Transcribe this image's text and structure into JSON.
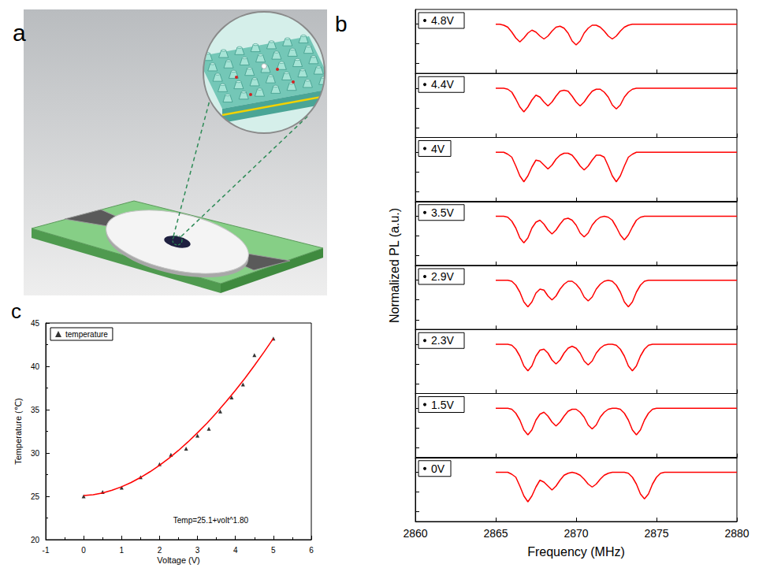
{
  "illustration": {
    "panel": "a"
  },
  "chart_data": [
    {
      "type": "line",
      "panel": "b",
      "x_label": "Frequency (MHz)",
      "y_label": "Normalized PL (a.u.)",
      "xlim": [
        2860,
        2880
      ],
      "xticks": [
        2860,
        2865,
        2870,
        2875,
        2880
      ],
      "ylim": [
        0.95,
        1.015
      ],
      "yticks": [
        0.96,
        0.98,
        1
      ],
      "tick_labels": "x",
      "grid": false,
      "x": [
        2865,
        2865.25,
        2865.5,
        2865.75,
        2866,
        2866.25,
        2866.5,
        2866.75,
        2867,
        2867.25,
        2867.5,
        2867.75,
        2868,
        2868.25,
        2868.5,
        2868.75,
        2869,
        2869.25,
        2869.5,
        2869.75,
        2870,
        2870.25,
        2870.5,
        2870.75,
        2871,
        2871.25,
        2871.5,
        2871.75,
        2872,
        2872.25,
        2872.5,
        2872.75,
        2873,
        2873.25,
        2873.5,
        2873.75,
        2874,
        2874.25,
        2874.5,
        2874.75,
        2875,
        2875.25,
        2875.5,
        2875.75,
        2876,
        2877,
        2878,
        2879,
        2880
      ],
      "series": [
        {
          "name": "0V",
          "color": "#ff0000",
          "values": [
            1,
            1,
            1,
            1,
            0.998,
            0.995,
            0.986,
            0.976,
            0.97,
            0.976,
            0.985,
            0.992,
            0.99,
            0.986,
            0.982,
            0.986,
            0.992,
            0.997,
            0.999,
            1,
            0.999,
            0.997,
            0.993,
            0.988,
            0.985,
            0.988,
            0.993,
            0.997,
            0.999,
            1,
            1,
            1,
            1,
            0.999,
            0.995,
            0.988,
            0.978,
            0.973,
            0.978,
            0.988,
            0.995,
            0.999,
            1,
            1,
            1,
            1,
            1,
            1,
            1
          ]
        },
        {
          "name": "1.5V",
          "color": "#ff0000",
          "values": [
            1,
            1,
            1,
            1,
            0.999,
            0.995,
            0.988,
            0.978,
            0.973,
            0.978,
            0.988,
            0.994,
            0.996,
            0.992,
            0.986,
            0.982,
            0.986,
            0.992,
            0.997,
            0.999,
            0.999,
            0.996,
            0.991,
            0.983,
            0.979,
            0.983,
            0.991,
            0.996,
            0.999,
            1,
            1,
            0.999,
            0.995,
            0.988,
            0.978,
            0.973,
            0.978,
            0.988,
            0.995,
            0.999,
            1,
            1,
            1,
            1,
            1,
            1,
            1,
            1,
            1
          ]
        },
        {
          "name": "2.3V",
          "color": "#ff0000",
          "values": [
            1,
            1,
            1,
            1,
            0.999,
            0.995,
            0.988,
            0.978,
            0.973,
            0.978,
            0.988,
            0.994,
            0.995,
            0.991,
            0.984,
            0.98,
            0.984,
            0.991,
            0.996,
            0.998,
            0.996,
            0.991,
            0.983,
            0.979,
            0.983,
            0.991,
            0.996,
            0.999,
            1,
            1,
            0.999,
            0.995,
            0.988,
            0.978,
            0.973,
            0.978,
            0.988,
            0.995,
            0.999,
            1,
            1,
            1,
            1,
            1,
            1,
            1,
            1,
            1,
            1
          ]
        },
        {
          "name": "2.9V",
          "color": "#ff0000",
          "values": [
            1,
            1,
            1,
            1,
            0.999,
            0.995,
            0.988,
            0.978,
            0.973,
            0.978,
            0.987,
            0.991,
            0.99,
            0.984,
            0.98,
            0.984,
            0.991,
            0.996,
            0.999,
            0.999,
            0.996,
            0.991,
            0.983,
            0.979,
            0.983,
            0.991,
            0.996,
            0.999,
            1,
            0.999,
            0.995,
            0.988,
            0.978,
            0.973,
            0.978,
            0.988,
            0.995,
            0.999,
            1,
            1,
            1,
            1,
            1,
            1,
            1,
            1,
            1,
            1,
            1
          ]
        },
        {
          "name": "3.5V",
          "color": "#ff0000",
          "values": [
            1,
            1,
            1,
            0.999,
            0.995,
            0.988,
            0.978,
            0.973,
            0.978,
            0.988,
            0.994,
            0.996,
            0.992,
            0.986,
            0.982,
            0.986,
            0.992,
            0.997,
            0.998,
            0.996,
            0.991,
            0.983,
            0.979,
            0.983,
            0.991,
            0.996,
            0.999,
            1,
            0.999,
            0.996,
            0.989,
            0.981,
            0.976,
            0.981,
            0.989,
            0.996,
            0.999,
            1,
            1,
            1,
            1,
            1,
            1,
            1,
            1,
            1,
            1,
            1,
            1
          ]
        },
        {
          "name": "4V",
          "color": "#ff0000",
          "values": [
            1,
            1,
            1,
            0.998,
            0.995,
            0.986,
            0.976,
            0.97,
            0.976,
            0.985,
            0.992,
            0.991,
            0.987,
            0.983,
            0.987,
            0.993,
            0.997,
            0.999,
            0.999,
            0.997,
            0.992,
            0.986,
            0.982,
            0.986,
            0.992,
            0.997,
            0.997,
            0.995,
            0.986,
            0.976,
            0.97,
            0.976,
            0.986,
            0.995,
            0.998,
            1,
            1,
            1,
            1,
            1,
            1,
            1,
            1,
            1,
            1,
            1,
            1,
            1,
            1
          ]
        },
        {
          "name": "4.4V",
          "color": "#ff0000",
          "values": [
            1,
            1,
            1,
            0.999,
            0.996,
            0.989,
            0.981,
            0.976,
            0.981,
            0.988,
            0.993,
            0.991,
            0.986,
            0.982,
            0.986,
            0.992,
            0.997,
            0.998,
            0.997,
            0.992,
            0.986,
            0.982,
            0.986,
            0.992,
            0.997,
            0.999,
            0.999,
            0.996,
            0.991,
            0.983,
            0.979,
            0.983,
            0.991,
            0.996,
            0.999,
            1,
            1,
            1,
            1,
            1,
            1,
            1,
            1,
            1,
            1,
            1,
            1,
            1,
            1
          ]
        },
        {
          "name": "4.8V",
          "color": "#ff0000",
          "values": [
            1,
            1,
            0.999,
            0.997,
            0.992,
            0.986,
            0.982,
            0.986,
            0.991,
            0.994,
            0.992,
            0.988,
            0.985,
            0.988,
            0.993,
            0.997,
            0.998,
            0.996,
            0.991,
            0.983,
            0.979,
            0.983,
            0.991,
            0.996,
            0.999,
            0.999,
            0.997,
            0.993,
            0.988,
            0.985,
            0.988,
            0.993,
            0.997,
            0.999,
            1,
            1,
            1,
            1,
            1,
            1,
            1,
            1,
            1,
            1,
            1,
            1,
            1,
            1,
            1
          ]
        }
      ]
    },
    {
      "type": "scatter",
      "panel": "c",
      "x_label": "Voltage (V)",
      "y_label": "Temperature (℃)",
      "annotation": "Temp=25.1+volt^1.80",
      "xlim": [
        -1,
        6
      ],
      "xticks": [
        -1,
        0,
        1,
        2,
        3,
        4,
        5,
        6
      ],
      "ylim": [
        20,
        45
      ],
      "yticks": [
        20,
        25,
        30,
        35,
        40,
        45
      ],
      "grid": false,
      "legend": "upper left",
      "series": [
        {
          "name": "temperature",
          "type": "scatter",
          "color": "#000000",
          "marker": "triangle",
          "x": [
            0,
            0.5,
            1,
            1.5,
            2,
            2.3,
            2.7,
            3,
            3.3,
            3.6,
            3.9,
            4.2,
            4.5,
            5
          ],
          "values": [
            25,
            25.5,
            26,
            27.2,
            28.7,
            29.8,
            30.5,
            32,
            32.8,
            34.8,
            36.4,
            37.9,
            41.3,
            43.2
          ]
        },
        {
          "type": "line",
          "color": "#ff0000",
          "line_style": "solid",
          "x": [
            0,
            0.25,
            0.5,
            0.75,
            1,
            1.25,
            1.5,
            1.75,
            2,
            2.25,
            2.5,
            2.75,
            3,
            3.25,
            3.5,
            3.75,
            4,
            4.25,
            4.5,
            4.75,
            5
          ],
          "values": [
            25.1,
            25.18,
            25.39,
            25.7,
            26.1,
            26.59,
            27.18,
            27.84,
            28.58,
            29.4,
            30.3,
            31.28,
            32.33,
            33.44,
            34.64,
            35.9,
            37.23,
            38.62,
            40.09,
            41.62,
            43.22
          ]
        }
      ]
    }
  ]
}
